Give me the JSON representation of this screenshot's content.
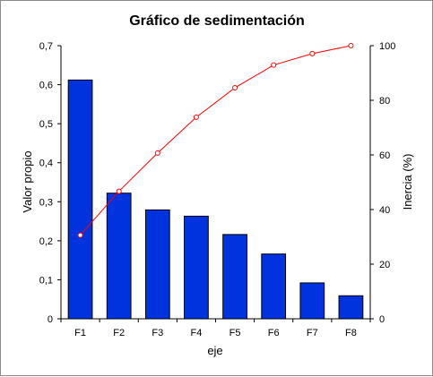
{
  "chart_data": {
    "type": "bar",
    "title": "Gráfico de sedimentación",
    "xlabel": "eje",
    "ylabel": "Valor propio",
    "y2label": "Inercia (%)",
    "categories": [
      "F1",
      "F2",
      "F3",
      "F4",
      "F5",
      "F6",
      "F7",
      "F8"
    ],
    "series": [
      {
        "type": "bar",
        "axis": "left",
        "color": "#0033dd",
        "values": [
          0.612,
          0.322,
          0.279,
          0.263,
          0.216,
          0.166,
          0.092,
          0.059
        ]
      },
      {
        "type": "line",
        "axis": "right",
        "color": "#ff0000",
        "values": [
          30.6,
          46.7,
          60.7,
          73.8,
          84.6,
          92.9,
          97.1,
          100
        ]
      }
    ],
    "ylim": [
      0,
      0.7
    ],
    "y2lim": [
      0,
      100
    ],
    "yticks": [
      "0",
      "0,1",
      "0,2",
      "0,3",
      "0,4",
      "0,5",
      "0,6",
      "0,7"
    ],
    "y2ticks": [
      "0",
      "20",
      "40",
      "60",
      "80",
      "100"
    ],
    "grid": false
  }
}
